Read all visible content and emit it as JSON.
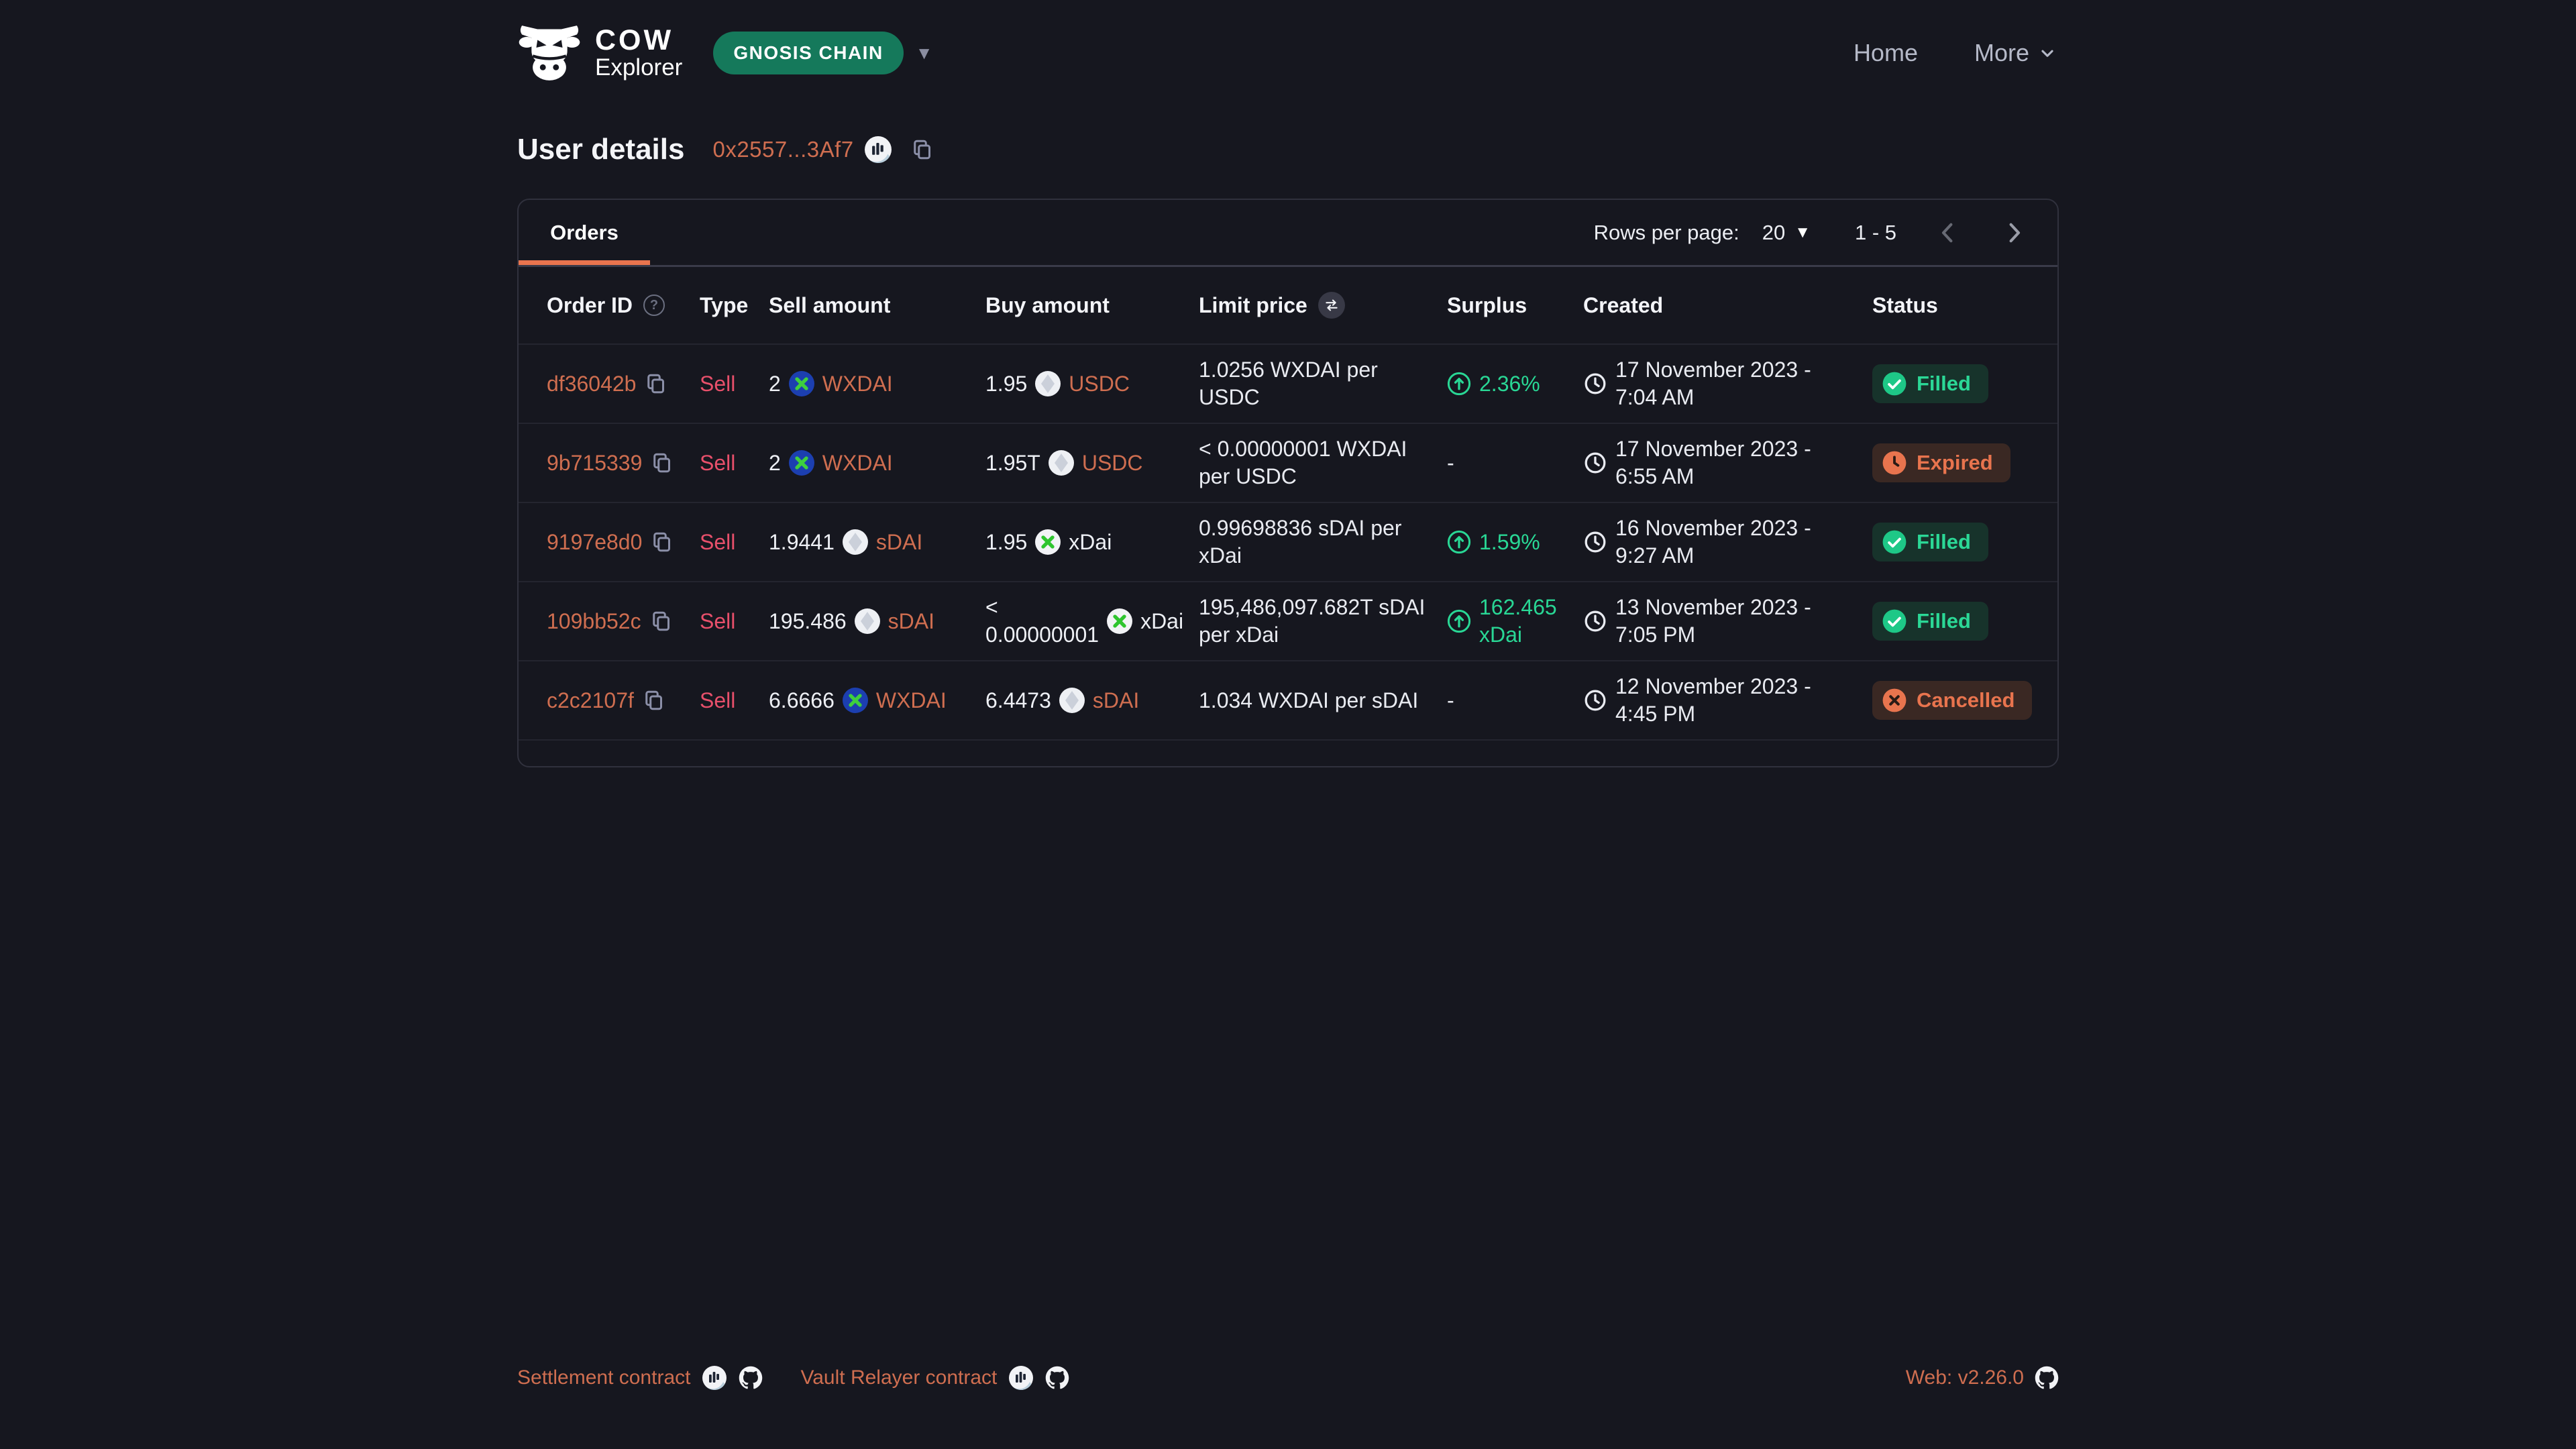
{
  "colors": {
    "accent_orange": "#e8744e",
    "link_orange": "#cf6e50",
    "sell_pink": "#e8506b",
    "green": "#29d795",
    "network_green": "#15795b",
    "page_bg": "#16171f"
  },
  "icons": {
    "triangle_down": "▼",
    "help": "?"
  },
  "header": {
    "brand_title": "COW",
    "brand_subtitle": "Explorer",
    "network": "GNOSIS CHAIN",
    "nav": [
      {
        "label": "Home"
      },
      {
        "label": "More"
      }
    ]
  },
  "page": {
    "title": "User details",
    "address": "0x2557...3Af7"
  },
  "orders_panel": {
    "tab_label": "Orders",
    "rows_per_page_label": "Rows per page:",
    "rows_per_page_value": "20",
    "page_range": "1 - 5",
    "columns": [
      "Order ID",
      "Type",
      "Sell amount",
      "Buy amount",
      "Limit price",
      "Surplus",
      "Created",
      "Status"
    ],
    "rows": [
      {
        "id": "df36042b",
        "type": "Sell",
        "sell": {
          "amount": "2",
          "token": "WXDAI",
          "icon": "wxdai",
          "link": true
        },
        "buy": {
          "amount": "1.95",
          "token": "USDC",
          "icon": "diamond",
          "link": true
        },
        "limit_price": "1.0256 WXDAI per USDC",
        "surplus": {
          "value": "2.36%"
        },
        "created": "17 November 2023 - 7:04 AM",
        "status": {
          "label": "Filled",
          "kind": "filled"
        }
      },
      {
        "id": "9b715339",
        "type": "Sell",
        "sell": {
          "amount": "2",
          "token": "WXDAI",
          "icon": "wxdai",
          "link": true
        },
        "buy": {
          "amount": "1.95T",
          "token": "USDC",
          "icon": "diamond",
          "link": true
        },
        "limit_price": "< 0.00000001 WXDAI per USDC",
        "surplus": {
          "value": "-"
        },
        "created": "17 November 2023 - 6:55 AM",
        "status": {
          "label": "Expired",
          "kind": "expired"
        }
      },
      {
        "id": "9197e8d0",
        "type": "Sell",
        "sell": {
          "amount": "1.9441",
          "token": "sDAI",
          "icon": "diamond",
          "link": true
        },
        "buy": {
          "amount": "1.95",
          "token": "xDai",
          "icon": "xdai",
          "link": false
        },
        "limit_price": "0.99698836 sDAI per xDai",
        "surplus": {
          "value": "1.59%"
        },
        "created": "16 November 2023 - 9:27 AM",
        "status": {
          "label": "Filled",
          "kind": "filled"
        }
      },
      {
        "id": "109bb52c",
        "type": "Sell",
        "sell": {
          "amount": "195.486",
          "token": "sDAI",
          "icon": "diamond",
          "link": true
        },
        "buy": {
          "amount": "< 0.00000001",
          "token": "xDai",
          "icon": "xdai",
          "link": false
        },
        "limit_price": "195,486,097.682T sDAI per xDai",
        "surplus": {
          "value": "162.465 xDai"
        },
        "created": "13 November 2023 - 7:05 PM",
        "status": {
          "label": "Filled",
          "kind": "filled"
        }
      },
      {
        "id": "c2c2107f",
        "type": "Sell",
        "sell": {
          "amount": "6.6666",
          "token": "WXDAI",
          "icon": "wxdai",
          "link": true
        },
        "buy": {
          "amount": "6.4473",
          "token": "sDAI",
          "icon": "diamond",
          "link": true
        },
        "limit_price": "1.034 WXDAI per sDAI",
        "surplus": {
          "value": "-"
        },
        "created": "12 November 2023 - 4:45 PM",
        "status": {
          "label": "Cancelled",
          "kind": "cancelled"
        }
      }
    ]
  },
  "footer": {
    "links": [
      {
        "label": "Settlement contract"
      },
      {
        "label": "Vault Relayer contract"
      }
    ],
    "version_label": "Web: v2.26.0"
  }
}
